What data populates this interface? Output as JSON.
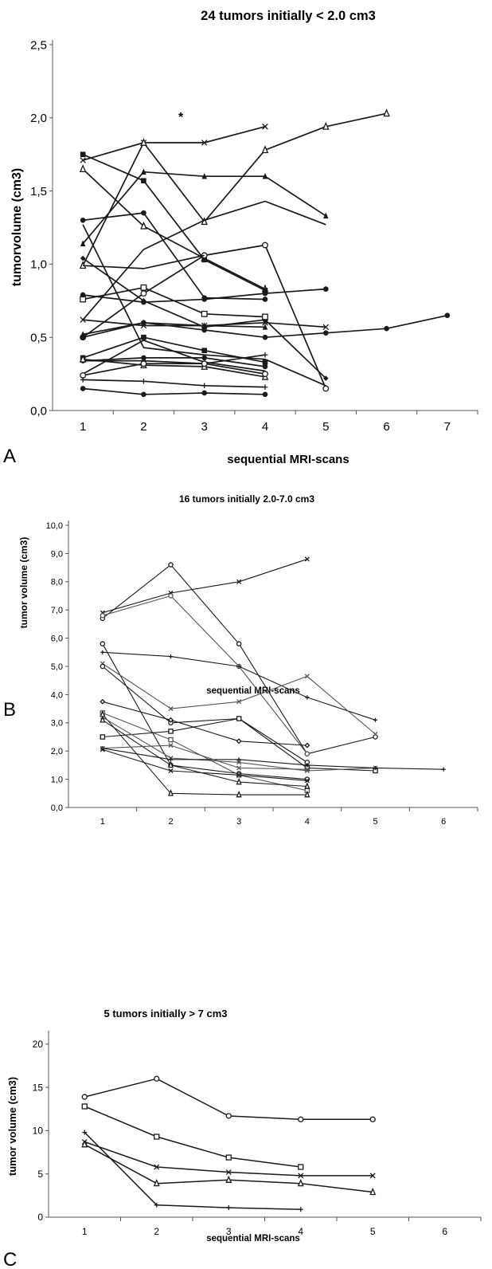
{
  "chart_data": [
    {
      "type": "line",
      "panel_letter": "A",
      "title": "24 tumors initially < 2.0 cm3",
      "xlabel": "sequential MRI-scans",
      "ylabel": "tumorvolume (cm3)",
      "xlim": [
        0.5,
        7.5
      ],
      "ylim": [
        0,
        2.5
      ],
      "x_ticks": [
        "1",
        "2",
        "3",
        "4",
        "5",
        "6",
        "7"
      ],
      "y_ticks": [
        "0,0",
        "0,5",
        "1,0",
        "1,5",
        "2,0",
        "2,5"
      ],
      "annotations": [
        "*"
      ],
      "grid": false,
      "legend": "none",
      "series": [
        {
          "marker": "x",
          "values": [
            [
              1,
              1.71
            ],
            [
              2,
              1.83
            ],
            [
              3,
              1.83
            ],
            [
              4,
              1.94
            ]
          ]
        },
        {
          "marker": "triangle-open",
          "values": [
            [
              1,
              1.65
            ],
            [
              2,
              1.26
            ],
            [
              3,
              1.04
            ],
            [
              4,
              0.83
            ]
          ]
        },
        {
          "marker": "triangle-open",
          "values": [
            [
              1,
              0.99
            ],
            [
              2,
              1.83
            ],
            [
              3,
              1.29
            ],
            [
              4,
              1.78
            ],
            [
              5,
              1.94
            ],
            [
              6,
              2.03
            ]
          ]
        },
        {
          "marker": "triangle",
          "values": [
            [
              1,
              1.14
            ],
            [
              2,
              1.63
            ],
            [
              3,
              1.6
            ],
            [
              4,
              1.6
            ],
            [
              5,
              1.33
            ]
          ]
        },
        {
          "marker": "none",
          "values": [
            [
              1,
              0.62
            ],
            [
              2,
              1.1
            ],
            [
              3,
              1.3
            ],
            [
              4,
              1.43
            ],
            [
              5,
              1.27
            ]
          ]
        },
        {
          "marker": "square",
          "values": [
            [
              1,
              1.75
            ],
            [
              2,
              1.57
            ],
            [
              3,
              1.03
            ],
            [
              4,
              0.82
            ]
          ]
        },
        {
          "marker": "circle",
          "values": [
            [
              1,
              1.3
            ],
            [
              2,
              1.35
            ],
            [
              3,
              0.77
            ],
            [
              4,
              0.76
            ]
          ]
        },
        {
          "marker": "circle-open",
          "values": [
            [
              1,
              0.5
            ],
            [
              2,
              0.8
            ],
            [
              3,
              1.06
            ],
            [
              4,
              1.13
            ],
            [
              5,
              0.15
            ]
          ]
        },
        {
          "marker": "none",
          "values": [
            [
              1,
              0.99
            ],
            [
              2,
              0.97
            ],
            [
              3,
              1.06
            ]
          ]
        },
        {
          "marker": "diamond",
          "values": [
            [
              1,
              1.04
            ],
            [
              2,
              0.75
            ],
            [
              3,
              0.57
            ],
            [
              4,
              0.62
            ],
            [
              5,
              0.22
            ]
          ]
        },
        {
          "marker": "square-open",
          "values": [
            [
              1,
              0.76
            ],
            [
              2,
              0.84
            ],
            [
              3,
              0.66
            ],
            [
              4,
              0.64
            ]
          ]
        },
        {
          "marker": "circle",
          "values": [
            [
              1,
              0.79
            ],
            [
              2,
              0.74
            ],
            [
              3,
              0.76
            ],
            [
              4,
              0.8
            ],
            [
              5,
              0.83
            ]
          ]
        },
        {
          "marker": "circle",
          "values": [
            [
              1,
              0.5
            ],
            [
              2,
              0.6
            ],
            [
              3,
              0.55
            ],
            [
              4,
              0.5
            ],
            [
              5,
              0.53
            ],
            [
              6,
              0.56
            ],
            [
              7,
              0.65
            ]
          ]
        },
        {
          "marker": "x",
          "values": [
            [
              1,
              0.62
            ],
            [
              2,
              0.58
            ],
            [
              3,
              0.58
            ],
            [
              4,
              0.6
            ],
            [
              5,
              0.57
            ]
          ]
        },
        {
          "marker": "triangle",
          "values": [
            [
              1,
              0.52
            ],
            [
              2,
              0.6
            ],
            [
              3,
              0.58
            ],
            [
              4,
              0.57
            ]
          ]
        },
        {
          "marker": "none",
          "values": [
            [
              1,
              1.27
            ],
            [
              2,
              0.43
            ],
            [
              3,
              0.38
            ],
            [
              4,
              0.35
            ],
            [
              5,
              0.17
            ]
          ]
        },
        {
          "marker": "square",
          "values": [
            [
              1,
              0.36
            ],
            [
              2,
              0.5
            ],
            [
              3,
              0.41
            ],
            [
              4,
              0.33
            ]
          ]
        },
        {
          "marker": "plus",
          "values": [
            [
              1,
              0.34
            ],
            [
              2,
              0.34
            ],
            [
              3,
              0.32
            ],
            [
              4,
              0.38
            ]
          ]
        },
        {
          "marker": "circle",
          "values": [
            [
              1,
              0.34
            ],
            [
              2,
              0.36
            ],
            [
              3,
              0.36
            ],
            [
              4,
              0.3
            ]
          ]
        },
        {
          "marker": "triangle-open",
          "values": [
            [
              1,
              0.35
            ],
            [
              2,
              0.31
            ],
            [
              3,
              0.3
            ],
            [
              4,
              0.23
            ]
          ]
        },
        {
          "marker": "none",
          "values": [
            [
              1,
              0.25
            ],
            [
              2,
              0.48
            ],
            [
              3,
              0.33
            ],
            [
              4,
              0.27
            ]
          ]
        },
        {
          "marker": "circle-open",
          "values": [
            [
              1,
              0.24
            ],
            [
              2,
              0.32
            ],
            [
              3,
              0.32
            ],
            [
              4,
              0.25
            ]
          ]
        },
        {
          "marker": "plus",
          "values": [
            [
              1,
              0.21
            ],
            [
              2,
              0.2
            ],
            [
              3,
              0.17
            ],
            [
              4,
              0.16
            ]
          ]
        },
        {
          "marker": "circle",
          "values": [
            [
              1,
              0.15
            ],
            [
              2,
              0.11
            ],
            [
              3,
              0.12
            ],
            [
              4,
              0.11
            ]
          ]
        }
      ]
    },
    {
      "type": "line",
      "panel_letter": "B",
      "title": "16 tumors initially 2.0-7.0 cm3",
      "xlabel": "sequential MRI-scans",
      "ylabel": "tumor volume (cm3)",
      "xlim": [
        0.5,
        6.5
      ],
      "ylim": [
        0,
        10
      ],
      "x_ticks": [
        "1",
        "2",
        "3",
        "4",
        "5",
        "6"
      ],
      "y_ticks": [
        "0,0",
        "1,0",
        "2,0",
        "3,0",
        "4,0",
        "5,0",
        "6,0",
        "7,0",
        "8,0",
        "9,0",
        "10,0"
      ],
      "grid": false,
      "legend": "none",
      "series": [
        {
          "marker": "x",
          "values": [
            [
              1,
              6.9
            ],
            [
              2,
              7.6
            ],
            [
              3,
              8.0
            ],
            [
              4,
              8.8
            ]
          ]
        },
        {
          "marker": "circle-open",
          "values": [
            [
              1,
              6.7
            ],
            [
              2,
              8.6
            ],
            [
              3,
              5.8
            ],
            [
              4,
              1.9
            ],
            [
              5,
              2.5
            ]
          ]
        },
        {
          "marker": "circle-open",
          "values": [
            [
              1,
              6.8
            ],
            [
              2,
              7.5
            ],
            [
              3,
              5.0
            ],
            [
              4,
              1.9
            ]
          ]
        },
        {
          "marker": "circle-open",
          "values": [
            [
              1,
              5.8
            ],
            [
              2,
              1.5
            ],
            [
              3,
              1.2
            ],
            [
              4,
              1.0
            ]
          ]
        },
        {
          "marker": "plus",
          "values": [
            [
              1,
              5.5
            ],
            [
              2,
              5.35
            ],
            [
              3,
              5.0
            ],
            [
              4,
              3.9
            ],
            [
              5,
              3.1
            ]
          ]
        },
        {
          "marker": "x",
          "values": [
            [
              1,
              5.1
            ],
            [
              2,
              3.5
            ],
            [
              3,
              3.75
            ],
            [
              4,
              4.65
            ],
            [
              5,
              2.6
            ]
          ]
        },
        {
          "marker": "circle-open",
          "values": [
            [
              1,
              5.0
            ],
            [
              2,
              3.0
            ],
            [
              3,
              3.15
            ],
            [
              4,
              1.6
            ]
          ]
        },
        {
          "marker": "diamond-open",
          "values": [
            [
              1,
              3.75
            ],
            [
              2,
              3.1
            ],
            [
              3,
              2.35
            ],
            [
              4,
              2.2
            ]
          ]
        },
        {
          "marker": "square-open",
          "values": [
            [
              1,
              3.35
            ],
            [
              2,
              2.4
            ],
            [
              3,
              1.15
            ],
            [
              4,
              0.6
            ]
          ]
        },
        {
          "marker": "triangle-open",
          "values": [
            [
              1,
              3.3
            ],
            [
              2,
              0.5
            ],
            [
              3,
              0.45
            ],
            [
              4,
              0.45
            ]
          ]
        },
        {
          "marker": "square-open",
          "values": [
            [
              1,
              2.5
            ],
            [
              2,
              2.7
            ],
            [
              3,
              3.15
            ],
            [
              4,
              1.4
            ],
            [
              5,
              1.3
            ]
          ]
        },
        {
          "marker": "x",
          "values": [
            [
              1,
              3.2
            ],
            [
              2,
              1.75
            ],
            [
              3,
              1.6
            ],
            [
              4,
              1.3
            ],
            [
              5,
              1.4
            ]
          ]
        },
        {
          "marker": "plus",
          "values": [
            [
              1,
              2.1
            ],
            [
              2,
              1.7
            ],
            [
              3,
              1.7
            ],
            [
              4,
              1.5
            ],
            [
              5,
              1.4
            ],
            [
              6,
              1.35
            ]
          ]
        },
        {
          "marker": "triangle-open",
          "values": [
            [
              1,
              3.1
            ],
            [
              2,
              1.5
            ],
            [
              3,
              0.9
            ],
            [
              4,
              0.75
            ]
          ]
        },
        {
          "marker": "x",
          "values": [
            [
              1,
              2.1
            ],
            [
              2,
              2.2
            ],
            [
              3,
              1.4
            ],
            [
              4,
              1.35
            ]
          ]
        },
        {
          "marker": "x",
          "values": [
            [
              1,
              2.05
            ],
            [
              2,
              1.3
            ],
            [
              3,
              1.15
            ],
            [
              4,
              0.95
            ]
          ]
        }
      ]
    },
    {
      "type": "line",
      "panel_letter": "C",
      "title": "5 tumors initially > 7 cm3",
      "xlabel": "sequential MRI-scans",
      "ylabel": "tumor volume (cm3)",
      "xlim": [
        0.5,
        6.5
      ],
      "ylim": [
        0,
        21
      ],
      "x_ticks": [
        "1",
        "2",
        "3",
        "4",
        "5",
        "6"
      ],
      "y_ticks": [
        "0",
        "5",
        "10",
        "15",
        "20"
      ],
      "grid": false,
      "legend": "none",
      "series": [
        {
          "marker": "circle-open",
          "values": [
            [
              1,
              13.9
            ],
            [
              2,
              16.0
            ],
            [
              3,
              11.7
            ],
            [
              4,
              11.3
            ],
            [
              5,
              11.3
            ]
          ]
        },
        {
          "marker": "square-open",
          "values": [
            [
              1,
              12.8
            ],
            [
              2,
              9.3
            ],
            [
              3,
              6.9
            ],
            [
              4,
              5.8
            ]
          ]
        },
        {
          "marker": "x",
          "values": [
            [
              1,
              8.7
            ],
            [
              2,
              5.8
            ],
            [
              3,
              5.2
            ],
            [
              4,
              4.8
            ],
            [
              5,
              4.8
            ]
          ]
        },
        {
          "marker": "triangle-open",
          "values": [
            [
              1,
              8.4
            ],
            [
              2,
              3.9
            ],
            [
              3,
              4.3
            ],
            [
              4,
              3.9
            ],
            [
              5,
              2.9
            ]
          ]
        },
        {
          "marker": "plus",
          "values": [
            [
              1,
              9.8
            ],
            [
              2,
              1.4
            ],
            [
              3,
              1.1
            ],
            [
              4,
              0.9
            ]
          ]
        }
      ]
    }
  ]
}
